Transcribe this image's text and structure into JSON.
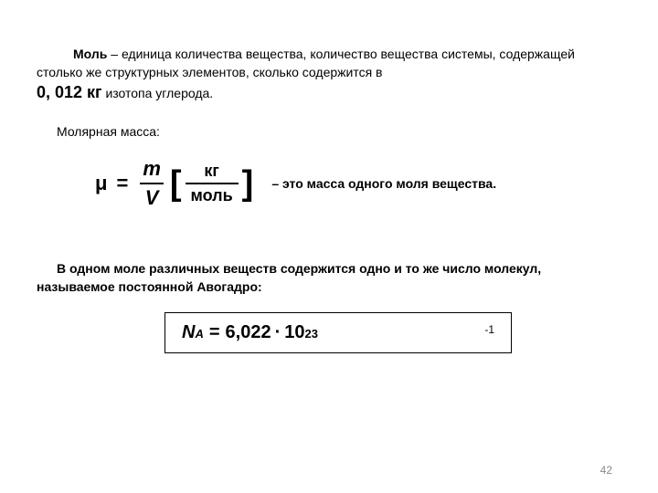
{
  "para1": {
    "mole": "Моль",
    "rest": " – единица количества вещества, количество вещества системы, содержащей столько же структурных элементов, сколько содержится в"
  },
  "kg_line": {
    "value": "0, 012 кг",
    "rest": " изотопа углерода."
  },
  "molar_label": "Молярная масса:",
  "formula1": {
    "mu": "μ",
    "num1": "m",
    "den1": "V",
    "num2": "кг",
    "den2": "моль",
    "desc": "– это масса одного моля вещества."
  },
  "para2": "В одном моле различных веществ содержится одно и то же число молекул, называемое постоянной Авогадро:",
  "avogadro": {
    "N": "N",
    "A": "A",
    "val": "6,022",
    "base": "10",
    "exp": "23",
    "unit_exp": "-1"
  },
  "page_num": "42",
  "colors": {
    "text": "#000000",
    "bg": "#ffffff",
    "pagenum": "#888888",
    "border": "#000000"
  }
}
